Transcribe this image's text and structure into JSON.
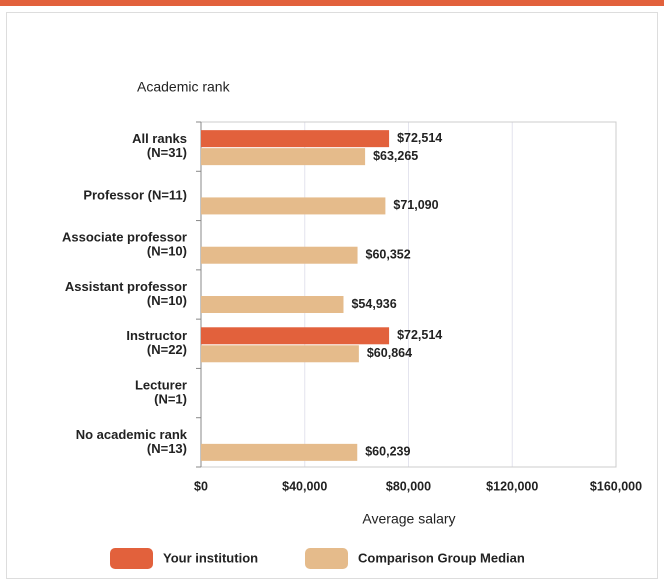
{
  "chart_data": {
    "type": "bar",
    "orientation": "horizontal",
    "y_axis_title": "Academic rank",
    "x_axis_title": "Average salary",
    "categories": [
      [
        "All ranks",
        "(N=31)"
      ],
      [
        "Professor (N=11)"
      ],
      [
        "Associate professor",
        "(N=10)"
      ],
      [
        "Assistant professor",
        "(N=10)"
      ],
      [
        "Instructor",
        "(N=22)"
      ],
      [
        "Lecturer",
        "(N=1)"
      ],
      [
        "No academic rank",
        "(N=13)"
      ]
    ],
    "series": [
      {
        "name": "Your institution",
        "color": "#e2613c",
        "values": [
          72514,
          null,
          null,
          null,
          72514,
          null,
          null
        ],
        "value_labels": [
          "$72,514",
          null,
          null,
          null,
          "$72,514",
          null,
          null
        ]
      },
      {
        "name": "Comparison Group Median",
        "color": "#e5bb8b",
        "values": [
          63265,
          71090,
          60352,
          54936,
          60864,
          null,
          60239
        ],
        "value_labels": [
          "$63,265",
          "$71,090",
          "$60,352",
          "$54,936",
          "$60,864",
          null,
          "$60,239"
        ]
      }
    ],
    "xlim": [
      0,
      160000
    ],
    "xticks": [
      {
        "value": 0,
        "label": "$0"
      },
      {
        "value": 40000,
        "label": "$40,000"
      },
      {
        "value": 80000,
        "label": "$80,000"
      },
      {
        "value": 120000,
        "label": "$120,000"
      },
      {
        "value": 160000,
        "label": "$160,000"
      }
    ],
    "grid": true,
    "legend": "bottom"
  }
}
